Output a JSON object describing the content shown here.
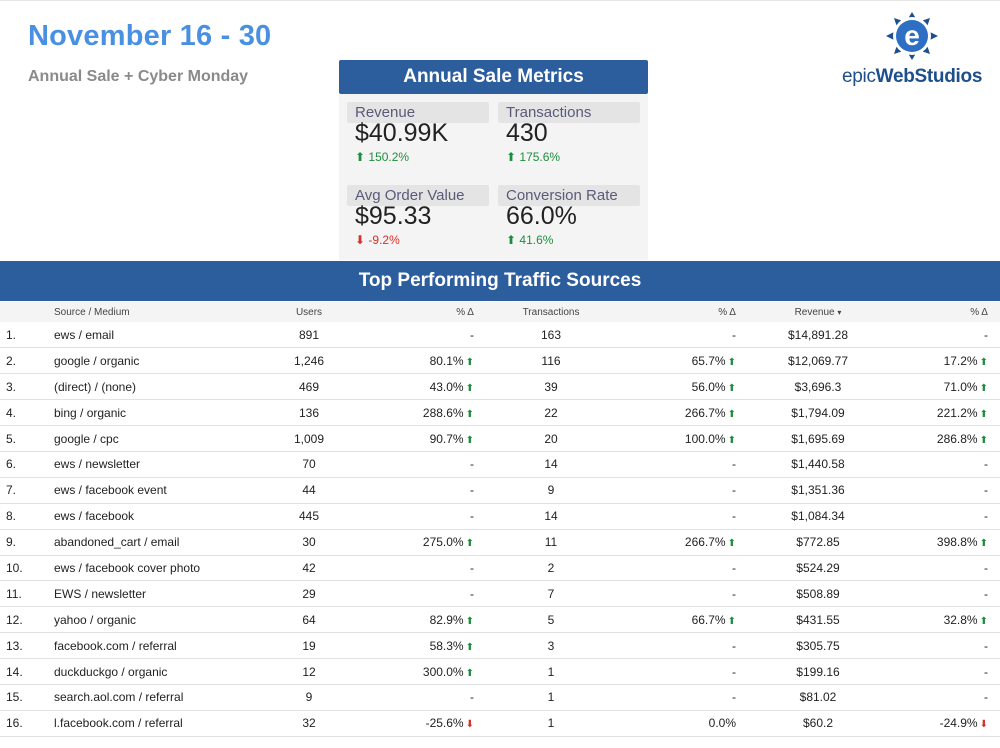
{
  "header": {
    "title": "November 16 - 30",
    "subtitle": "Annual Sale + Cyber Monday"
  },
  "logo": {
    "text_light": "epic",
    "text_bold": "WebStudios",
    "icon": "e-logo-icon"
  },
  "metrics": {
    "title": "Annual Sale Metrics",
    "cards": [
      {
        "label": "Revenue",
        "value": "$40.99K",
        "change": "150.2%",
        "direction": "up"
      },
      {
        "label": "Transactions",
        "value": "430",
        "change": "175.6%",
        "direction": "up"
      },
      {
        "label": "Avg Order Value",
        "value": "$95.33",
        "change": "-9.2%",
        "direction": "down"
      },
      {
        "label": "Conversion Rate",
        "value": "66.0%",
        "change": "41.6%",
        "direction": "up"
      }
    ]
  },
  "table": {
    "title": "Top Performing Traffic Sources",
    "columns": [
      "Source / Medium",
      "Users",
      "% Δ",
      "Transactions",
      "% Δ",
      "Revenue",
      "% Δ"
    ],
    "sort_indicator": "▾",
    "rows": [
      [
        "1.",
        "ews / email",
        "891",
        "-",
        "163",
        "-",
        "$14,891.28",
        "-"
      ],
      [
        "2.",
        "google / organic",
        "1,246",
        "80.1%",
        "116",
        "65.7%",
        "$12,069.77",
        "17.2%"
      ],
      [
        "3.",
        "(direct) / (none)",
        "469",
        "43.0%",
        "39",
        "56.0%",
        "$3,696.3",
        "71.0%"
      ],
      [
        "4.",
        "bing / organic",
        "136",
        "288.6%",
        "22",
        "266.7%",
        "$1,794.09",
        "221.2%"
      ],
      [
        "5.",
        "google / cpc",
        "1,009",
        "90.7%",
        "20",
        "100.0%",
        "$1,695.69",
        "286.8%"
      ],
      [
        "6.",
        "ews / newsletter",
        "70",
        "-",
        "14",
        "-",
        "$1,440.58",
        "-"
      ],
      [
        "7.",
        "ews / facebook event",
        "44",
        "-",
        "9",
        "-",
        "$1,351.36",
        "-"
      ],
      [
        "8.",
        "ews / facebook",
        "445",
        "-",
        "14",
        "-",
        "$1,084.34",
        "-"
      ],
      [
        "9.",
        "abandoned_cart / email",
        "30",
        "275.0%",
        "11",
        "266.7%",
        "$772.85",
        "398.8%"
      ],
      [
        "10.",
        "ews / facebook cover photo",
        "42",
        "-",
        "2",
        "-",
        "$524.29",
        "-"
      ],
      [
        "11.",
        "EWS / newsletter",
        "29",
        "-",
        "7",
        "-",
        "$508.89",
        "-"
      ],
      [
        "12.",
        "yahoo / organic",
        "64",
        "82.9%",
        "5",
        "66.7%",
        "$431.55",
        "32.8%"
      ],
      [
        "13.",
        "facebook.com / referral",
        "19",
        "58.3%",
        "3",
        "-",
        "$305.75",
        "-"
      ],
      [
        "14.",
        "duckduckgo / organic",
        "12",
        "300.0%",
        "1",
        "-",
        "$199.16",
        "-"
      ],
      [
        "15.",
        "search.aol.com / referral",
        "9",
        "-",
        "1",
        "-",
        "$81.02",
        "-"
      ],
      [
        "16.",
        "l.facebook.com / referral",
        "32",
        "-25.6%",
        "1",
        "0.0%",
        "$60.2",
        "-24.9%"
      ]
    ]
  },
  "colors": {
    "accent": "#2c5d9d",
    "title": "#4a90e2",
    "up": "#1e8e3e",
    "down": "#d93025"
  }
}
